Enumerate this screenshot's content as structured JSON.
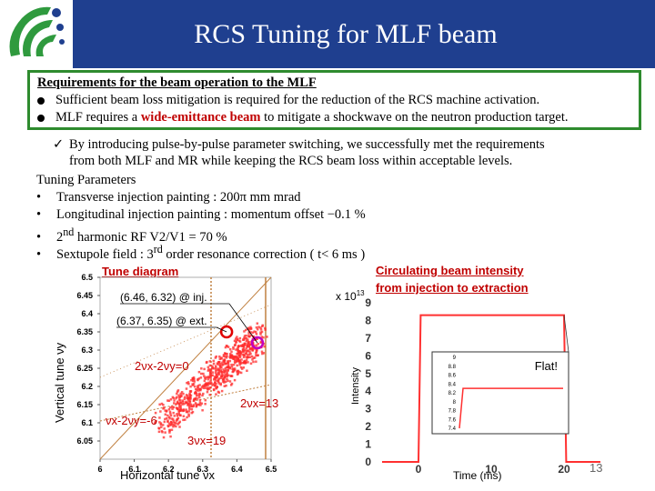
{
  "title": "RCS Tuning for MLF beam",
  "requirements": {
    "heading": "Requirements for the beam operation to the MLF",
    "item1": "Sufficient beam loss mitigation is required for the reduction of the RCS machine activation.",
    "item2_pre": "MLF requires a ",
    "item2_highlight": "wide-emittance beam",
    "item2_post": " to mitigate a shockwave on the neutron production target."
  },
  "summary": {
    "line1": "By introducing pulse-by-pulse parameter switching, we successfully met the requirements",
    "line2": "from both MLF and MR while keeping the RCS beam loss within acceptable levels."
  },
  "tuning": {
    "heading": "Tuning Parameters",
    "p1": "Transverse injection painting : 200π mm mrad",
    "p2": "Longitudinal injection painting : momentum offset −0.1 %",
    "p3_pre": "2",
    "p3_sup": "nd",
    "p3_post": " harmonic RF V2/V1 = 70 %",
    "p4_pre": "Sextupole field : 3",
    "p4_sup": "rd",
    "p4_post": " order resonance correction ( t< 6 ms )"
  },
  "tune_diagram": {
    "title": "Tune diagram",
    "xlabel": "Horizontal tune νx",
    "ylabel": "Vertical tune νy",
    "inj_label": "(6.46, 6.32) @ inj.",
    "ext_label": "(6.37, 6.35) @ ext.",
    "res1": "2νx-2νy=0",
    "res2": "2νx=13",
    "res3": "νx-2νy=-6",
    "res4": "3νx=19",
    "inj_color": "#c000c0",
    "ext_color": "#e00000"
  },
  "chart_data": [
    {
      "type": "scatter",
      "title": "Tune diagram",
      "xlabel": "Horizontal tune νx",
      "ylabel": "Vertical tune νy",
      "xlim": [
        6.0,
        6.5
      ],
      "ylim": [
        6.0,
        6.5
      ],
      "xticks": [
        "6",
        "6.1",
        "6.2",
        "6.3",
        "6.4",
        "6.5"
      ],
      "yticks": [
        "6.05",
        "6.1",
        "6.15",
        "6.2",
        "6.25",
        "6.3",
        "6.35",
        "6.4",
        "6.45",
        "6.5"
      ],
      "points": [
        {
          "name": "injection",
          "x": 6.46,
          "y": 6.32
        },
        {
          "name": "extraction",
          "x": 6.37,
          "y": 6.35
        }
      ]
    },
    {
      "type": "line",
      "title": "Circulating beam intensity from injection to extraction",
      "xlabel": "Time (ms)",
      "ylabel": "Intensity",
      "multiplier": "x 10",
      "multiplier_exp": "13",
      "xlim": [
        -5,
        25
      ],
      "ylim": [
        0,
        9
      ],
      "xticks": [
        "0",
        "10",
        "20"
      ],
      "yticks": [
        "0",
        "1",
        "2",
        "3",
        "4",
        "5",
        "6",
        "7",
        "8",
        "9"
      ],
      "x": [
        -5,
        0,
        0.3,
        20,
        20.3,
        25
      ],
      "values": [
        0,
        0,
        8.3,
        8.3,
        0,
        0
      ],
      "inset_label": "Flat!",
      "inset_yticks": [
        "7.4",
        "7.6",
        "7.8",
        "8",
        "8.2",
        "8.4",
        "8.6",
        "8.8",
        "9"
      ]
    }
  ],
  "intensity_plot": {
    "title_line1": "Circulating beam intensity",
    "title_line2": "from injection to extraction",
    "multiplier": "x 10",
    "multiplier_exp": "13"
  },
  "page_number": "13"
}
